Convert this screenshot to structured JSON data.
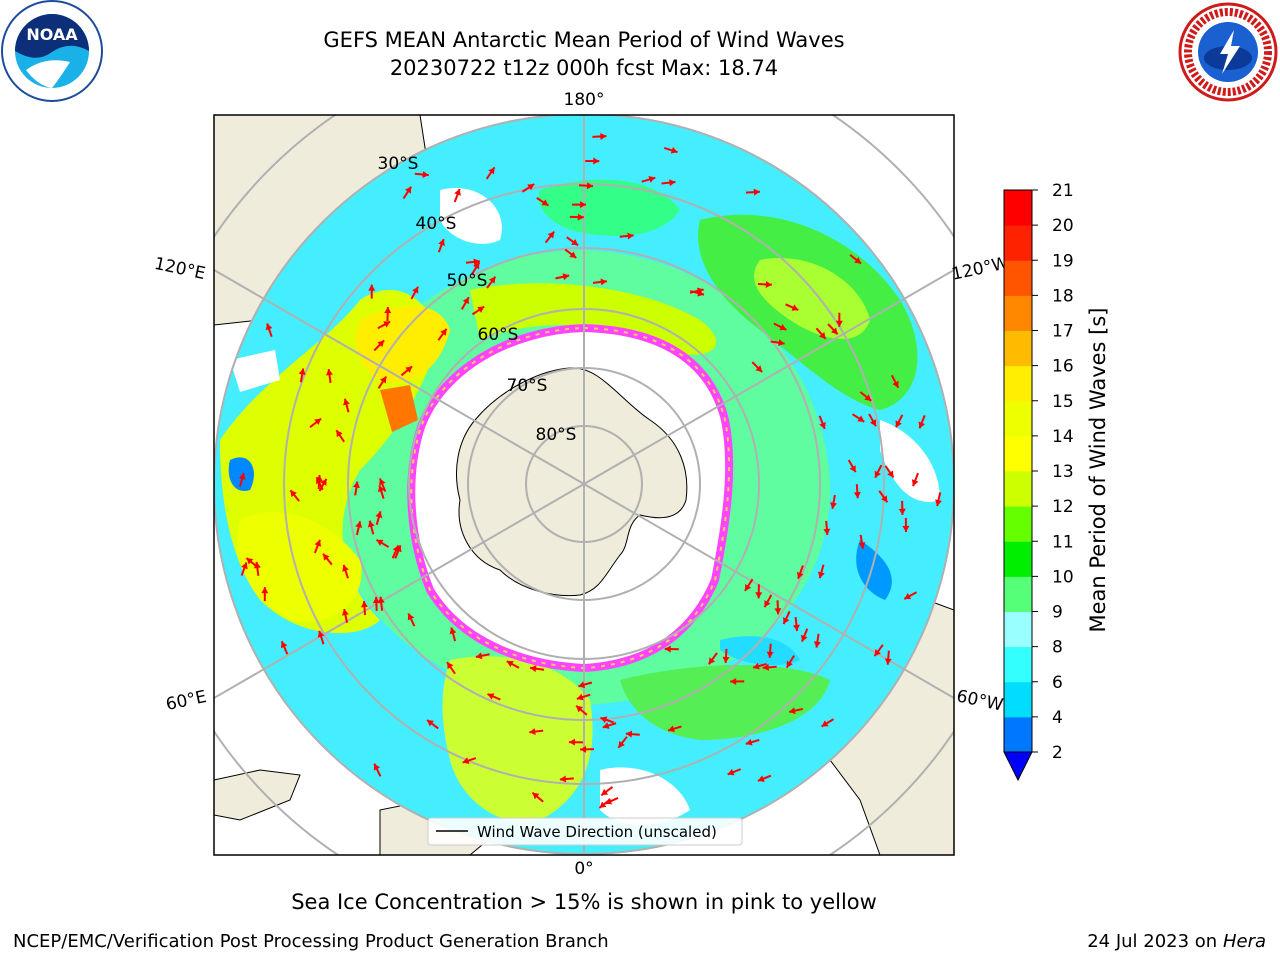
{
  "header": {
    "title_line1": "GEFS MEAN Antarctic Mean Period of Wind Waves",
    "title_line2": "20230722 t12z 000h fcst   Max: 18.74"
  },
  "map": {
    "labels": {
      "top": "180°",
      "bottom": "0°",
      "left_upper": "120°E",
      "left_lower": "60°E",
      "right_upper": "120°W",
      "right_lower": "60°W",
      "lat_30": "30°S",
      "lat_40": "40°S",
      "lat_50": "50°S",
      "lat_60": "60°S",
      "lat_70": "70°S",
      "lat_80": "80°S"
    },
    "legend_label": "Wind Wave Direction (unscaled)",
    "colors": {
      "land": "#efecdc",
      "ice": "#ff44ff",
      "arrow": "#ff0000",
      "grid": "#b0b0b0"
    }
  },
  "colorbar": {
    "label": "Mean Period of Wind Waves [s]",
    "ticks": [
      "2",
      "4",
      "6",
      "8",
      "9",
      "10",
      "11",
      "12",
      "13",
      "14",
      "15",
      "16",
      "17",
      "18",
      "19",
      "20",
      "21"
    ],
    "colors": [
      "#0077ff",
      "#00ddff",
      "#33ffff",
      "#99ffff",
      "#55ff77",
      "#00ee00",
      "#66ff00",
      "#ccff00",
      "#ffff00",
      "#eeff00",
      "#ffee00",
      "#ffbb00",
      "#ff8800",
      "#ff5500",
      "#ff2200",
      "#ff0000"
    ],
    "extend_color": "#0000ff"
  },
  "footer": {
    "note": "Sea Ice Concentration > 15% is shown in pink to yellow",
    "org": "NCEP/EMC/Verification Post Processing Product Generation Branch",
    "date": "24 Jul 2023 on ",
    "machine": "Hera"
  },
  "logos": {
    "noaa": "NOAA",
    "nws": "NATIONAL WEATHER SERVICE"
  }
}
